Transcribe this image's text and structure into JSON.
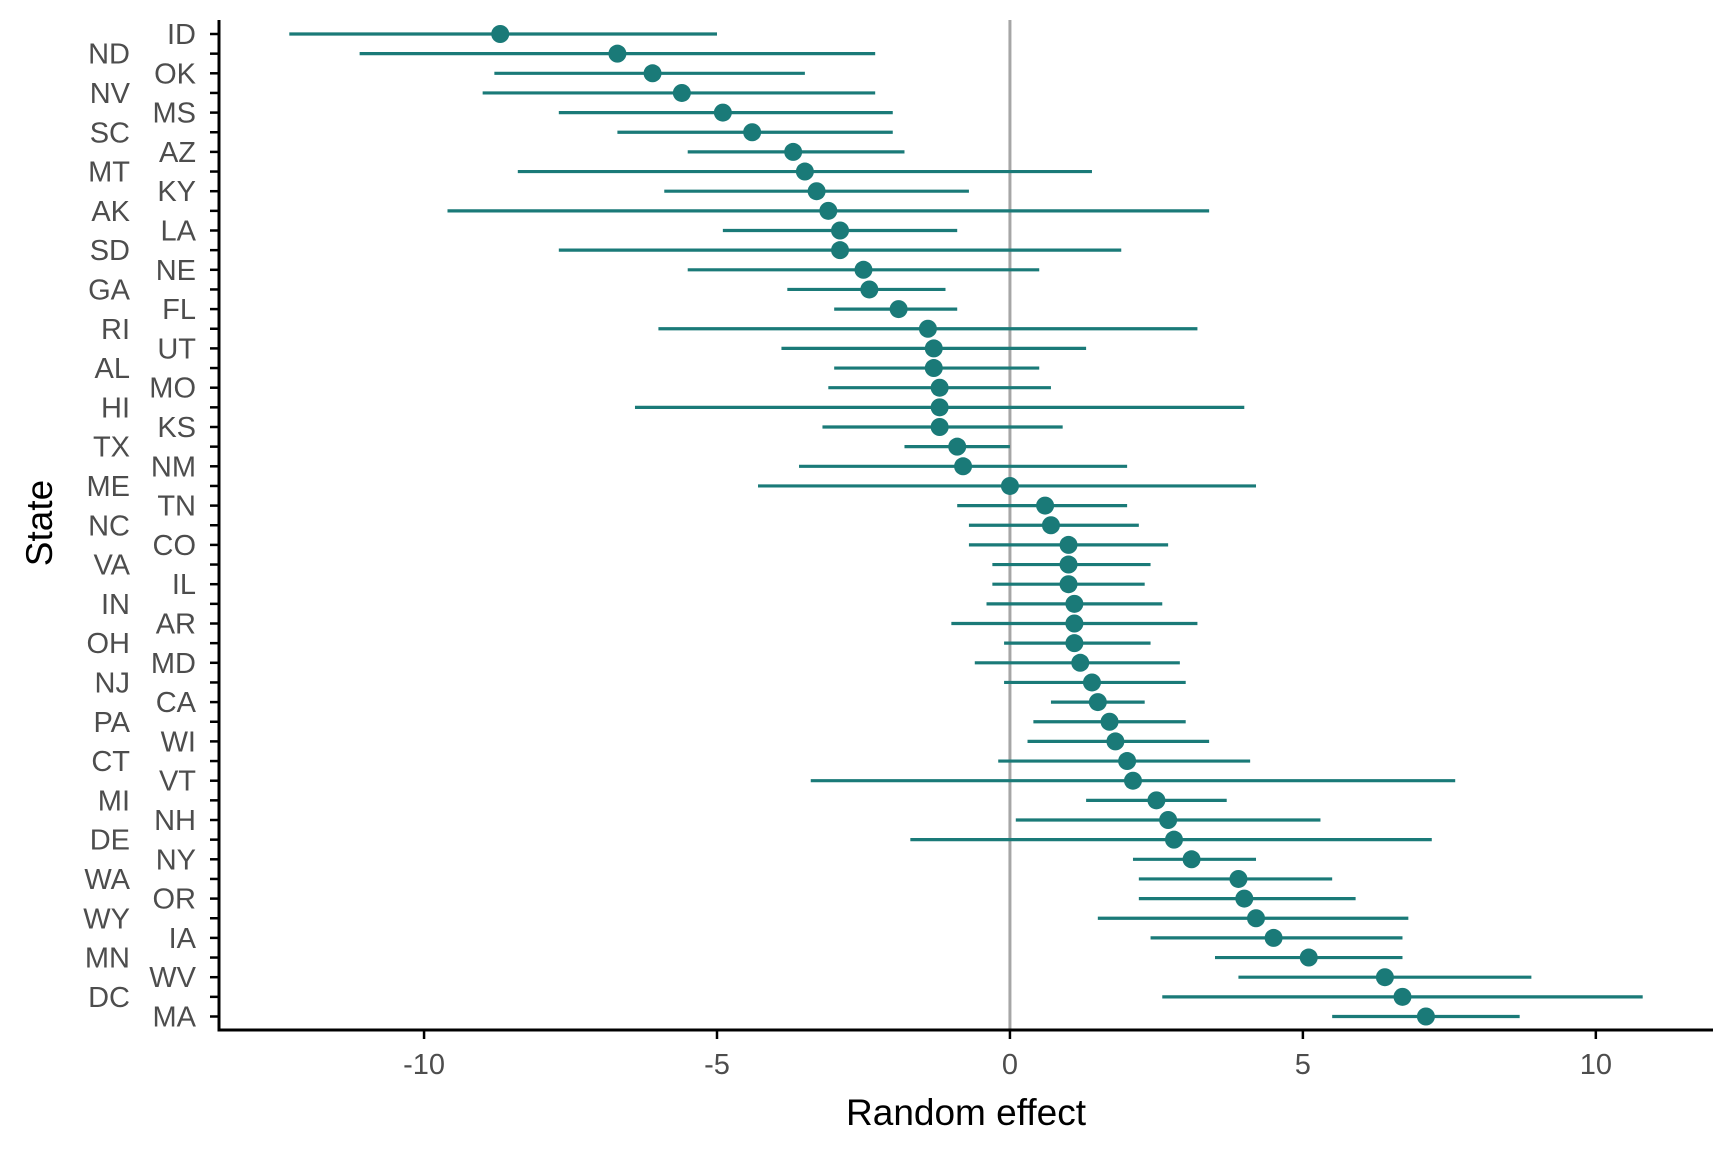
{
  "chart_data": {
    "type": "scatter",
    "variant": "forest-plot",
    "title": "",
    "xlabel": "Random effect",
    "ylabel": "State",
    "xlim": [
      -13.5,
      12
    ],
    "x_ticks": [
      -10,
      -5,
      0,
      5,
      10
    ],
    "x_tick_labels": [
      "-10",
      "-5",
      "0",
      "5",
      "10"
    ],
    "reference_line": 0,
    "grid": false,
    "legend": "none",
    "colors": {
      "series": "#1a7a78",
      "reference": "#a6a6a6",
      "axis": "#000000",
      "text": "#4d4d4d"
    },
    "series": [
      {
        "values": [
          {
            "state": "ID",
            "estimate": -8.7,
            "low": -12.3,
            "high": -5.0
          },
          {
            "state": "ND",
            "estimate": -6.7,
            "low": -11.1,
            "high": -2.3
          },
          {
            "state": "OK",
            "estimate": -6.1,
            "low": -8.8,
            "high": -3.5
          },
          {
            "state": "NV",
            "estimate": -5.6,
            "low": -9.0,
            "high": -2.3
          },
          {
            "state": "MS",
            "estimate": -4.9,
            "low": -7.7,
            "high": -2.0
          },
          {
            "state": "SC",
            "estimate": -4.4,
            "low": -6.7,
            "high": -2.0
          },
          {
            "state": "AZ",
            "estimate": -3.7,
            "low": -5.5,
            "high": -1.8
          },
          {
            "state": "MT",
            "estimate": -3.5,
            "low": -8.4,
            "high": 1.4
          },
          {
            "state": "KY",
            "estimate": -3.3,
            "low": -5.9,
            "high": -0.7
          },
          {
            "state": "AK",
            "estimate": -3.1,
            "low": -9.6,
            "high": 3.4
          },
          {
            "state": "LA",
            "estimate": -2.9,
            "low": -4.9,
            "high": -0.9
          },
          {
            "state": "SD",
            "estimate": -2.9,
            "low": -7.7,
            "high": 1.9
          },
          {
            "state": "NE",
            "estimate": -2.5,
            "low": -5.5,
            "high": 0.5
          },
          {
            "state": "GA",
            "estimate": -2.4,
            "low": -3.8,
            "high": -1.1
          },
          {
            "state": "FL",
            "estimate": -1.9,
            "low": -3.0,
            "high": -0.9
          },
          {
            "state": "RI",
            "estimate": -1.4,
            "low": -6.0,
            "high": 3.2
          },
          {
            "state": "UT",
            "estimate": -1.3,
            "low": -3.9,
            "high": 1.3
          },
          {
            "state": "AL",
            "estimate": -1.3,
            "low": -3.0,
            "high": 0.5
          },
          {
            "state": "MO",
            "estimate": -1.2,
            "low": -3.1,
            "high": 0.7
          },
          {
            "state": "HI",
            "estimate": -1.2,
            "low": -6.4,
            "high": 4.0
          },
          {
            "state": "KS",
            "estimate": -1.2,
            "low": -3.2,
            "high": 0.9
          },
          {
            "state": "TX",
            "estimate": -0.9,
            "low": -1.8,
            "high": 0.0
          },
          {
            "state": "NM",
            "estimate": -0.8,
            "low": -3.6,
            "high": 2.0
          },
          {
            "state": "ME",
            "estimate": 0.0,
            "low": -4.3,
            "high": 4.2
          },
          {
            "state": "TN",
            "estimate": 0.6,
            "low": -0.9,
            "high": 2.0
          },
          {
            "state": "NC",
            "estimate": 0.7,
            "low": -0.7,
            "high": 2.2
          },
          {
            "state": "CO",
            "estimate": 1.0,
            "low": -0.7,
            "high": 2.7
          },
          {
            "state": "VA",
            "estimate": 1.0,
            "low": -0.3,
            "high": 2.4
          },
          {
            "state": "IL",
            "estimate": 1.0,
            "low": -0.3,
            "high": 2.3
          },
          {
            "state": "IN",
            "estimate": 1.1,
            "low": -0.4,
            "high": 2.6
          },
          {
            "state": "AR",
            "estimate": 1.1,
            "low": -1.0,
            "high": 3.2
          },
          {
            "state": "OH",
            "estimate": 1.1,
            "low": -0.1,
            "high": 2.4
          },
          {
            "state": "MD",
            "estimate": 1.2,
            "low": -0.6,
            "high": 2.9
          },
          {
            "state": "NJ",
            "estimate": 1.4,
            "low": -0.1,
            "high": 3.0
          },
          {
            "state": "CA",
            "estimate": 1.5,
            "low": 0.7,
            "high": 2.3
          },
          {
            "state": "PA",
            "estimate": 1.7,
            "low": 0.4,
            "high": 3.0
          },
          {
            "state": "WI",
            "estimate": 1.8,
            "low": 0.3,
            "high": 3.4
          },
          {
            "state": "CT",
            "estimate": 2.0,
            "low": -0.2,
            "high": 4.1
          },
          {
            "state": "VT",
            "estimate": 2.1,
            "low": -3.4,
            "high": 7.6
          },
          {
            "state": "MI",
            "estimate": 2.5,
            "low": 1.3,
            "high": 3.7
          },
          {
            "state": "NH",
            "estimate": 2.7,
            "low": 0.1,
            "high": 5.3
          },
          {
            "state": "DE",
            "estimate": 2.8,
            "low": -1.7,
            "high": 7.2
          },
          {
            "state": "NY",
            "estimate": 3.1,
            "low": 2.1,
            "high": 4.2
          },
          {
            "state": "WA",
            "estimate": 3.9,
            "low": 2.2,
            "high": 5.5
          },
          {
            "state": "OR",
            "estimate": 4.0,
            "low": 2.2,
            "high": 5.9
          },
          {
            "state": "WY",
            "estimate": 4.2,
            "low": 1.5,
            "high": 6.8
          },
          {
            "state": "IA",
            "estimate": 4.5,
            "low": 2.4,
            "high": 6.7
          },
          {
            "state": "MN",
            "estimate": 5.1,
            "low": 3.5,
            "high": 6.7
          },
          {
            "state": "WV",
            "estimate": 6.4,
            "low": 3.9,
            "high": 8.9
          },
          {
            "state": "DC",
            "estimate": 6.7,
            "low": 2.6,
            "high": 10.8
          },
          {
            "state": "MA",
            "estimate": 7.1,
            "low": 5.5,
            "high": 8.7
          }
        ]
      }
    ]
  }
}
